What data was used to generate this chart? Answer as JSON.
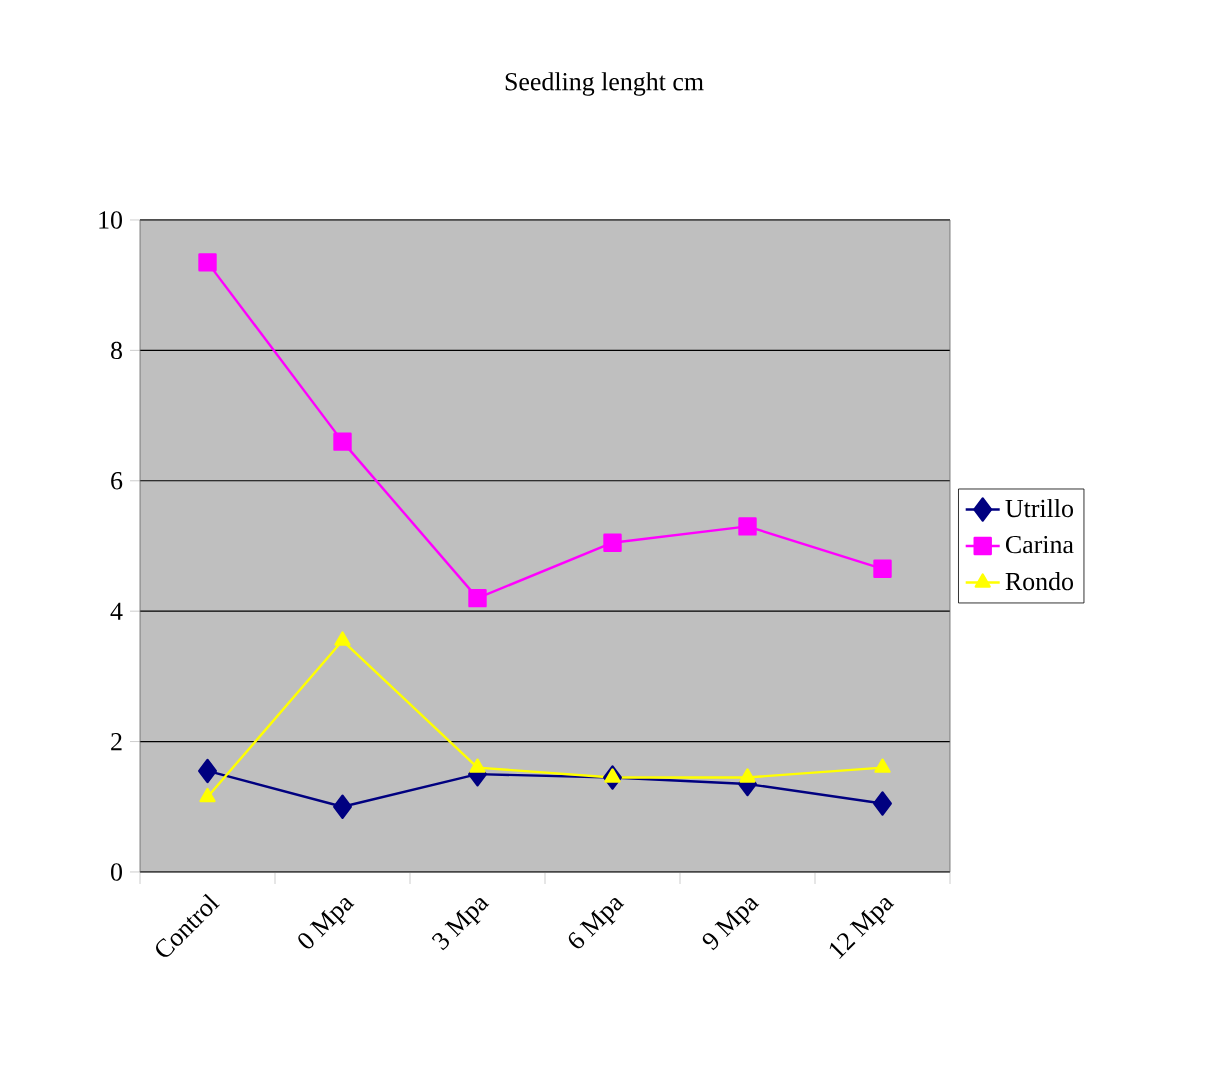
{
  "chart_data": {
    "type": "line",
    "title": "Seedling lenght cm",
    "categories": [
      "Control",
      "0 Mpa",
      "3 Mpa",
      "6 Mpa",
      "9 Mpa",
      "12 Mpa"
    ],
    "series": [
      {
        "name": "Utrillo",
        "color": "#000080",
        "marker": "diamond",
        "values": [
          1.55,
          1.0,
          1.5,
          1.45,
          1.35,
          1.05
        ]
      },
      {
        "name": "Carina",
        "color": "#ff00ff",
        "marker": "square",
        "values": [
          9.35,
          6.6,
          4.2,
          5.05,
          5.3,
          4.65
        ]
      },
      {
        "name": "Rondo",
        "color": "#ffff00",
        "marker": "triangle",
        "values": [
          1.15,
          3.55,
          1.6,
          1.45,
          1.45,
          1.6
        ]
      }
    ],
    "ylim": [
      0,
      10
    ],
    "yticks": [
      0,
      2,
      4,
      6,
      8,
      10
    ],
    "grid": "y",
    "legend": "right"
  }
}
